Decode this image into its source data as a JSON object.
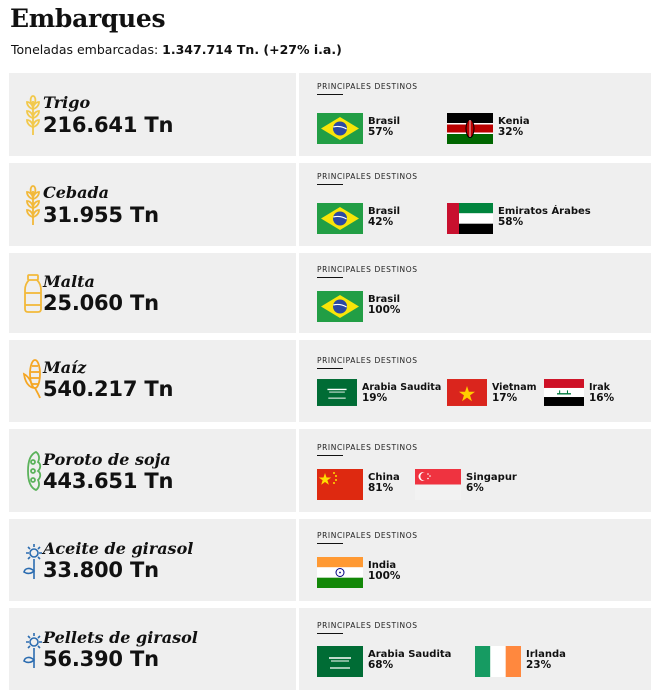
{
  "header": {
    "title": "Embarques",
    "subtitle_label": "Toneladas embarcadas:",
    "subtitle_value": "1.347.714 Tn. (+27% i.a.)"
  },
  "colors": {
    "card_bg": "#efefef",
    "grain_yellow": "#f2c94c",
    "corn_orange": "#f5a623",
    "soy_green": "#5bb25b",
    "sunflower_blue": "#2b6cb0"
  },
  "dest_label": "PRINCIPALES DESTINOS",
  "products": [
    {
      "name": "Trigo",
      "tonnage": "216.641 Tn",
      "icon": "wheat-icon",
      "destinations": [
        {
          "country": "Brasil",
          "pct": "57%",
          "flag": "brazil"
        },
        {
          "country": "Kenia",
          "pct": "32%",
          "flag": "kenya"
        }
      ]
    },
    {
      "name": "Cebada",
      "tonnage": "31.955 Tn",
      "icon": "barley-icon",
      "destinations": [
        {
          "country": "Brasil",
          "pct": "42%",
          "flag": "brazil"
        },
        {
          "country": "Emiratos Árabes",
          "pct": "58%",
          "flag": "uae"
        }
      ]
    },
    {
      "name": "Malta",
      "tonnage": "25.060 Tn",
      "icon": "malt-jar-icon",
      "destinations": [
        {
          "country": "Brasil",
          "pct": "100%",
          "flag": "brazil"
        }
      ]
    },
    {
      "name": "Maíz",
      "tonnage": "540.217 Tn",
      "icon": "corn-icon",
      "destinations": [
        {
          "country": "Arabia Saudita",
          "pct": "19%",
          "flag": "saudi"
        },
        {
          "country": "Vietnam",
          "pct": "17%",
          "flag": "vietnam"
        },
        {
          "country": "Irak",
          "pct": "16%",
          "flag": "iraq"
        }
      ]
    },
    {
      "name": "Poroto de soja",
      "tonnage": "443.651 Tn",
      "icon": "soybean-icon",
      "destinations": [
        {
          "country": "China",
          "pct": "81%",
          "flag": "china"
        },
        {
          "country": "Singapur",
          "pct": "6%",
          "flag": "singapore"
        }
      ]
    },
    {
      "name": "Aceite de girasol",
      "tonnage": "33.800 Tn",
      "icon": "sunflower-oil-icon",
      "destinations": [
        {
          "country": "India",
          "pct": "100%",
          "flag": "india"
        }
      ]
    },
    {
      "name": "Pellets de girasol",
      "tonnage": "56.390 Tn",
      "icon": "sunflower-pellets-icon",
      "destinations": [
        {
          "country": "Arabia Saudita",
          "pct": "68%",
          "flag": "saudi"
        },
        {
          "country": "Irlanda",
          "pct": "23%",
          "flag": "ireland"
        }
      ]
    }
  ]
}
